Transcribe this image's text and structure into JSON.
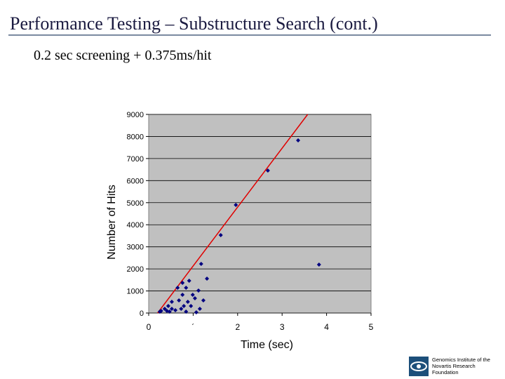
{
  "header": {
    "title": "Performance Testing – Substructure Search (cont.)",
    "subtitle": "0.2 sec screening + 0.375ms/hit"
  },
  "chart_data": {
    "type": "scatter",
    "x_label": "Time (sec)",
    "y_label": "Number of Hits",
    "xlim": [
      0,
      5
    ],
    "ylim": [
      0,
      9000
    ],
    "xticks": [
      0,
      {
        "value": 1,
        "label": "´"
      },
      2,
      3,
      4,
      5
    ],
    "yticks": [
      0,
      1000,
      2000,
      3000,
      4000,
      5000,
      6000,
      7000,
      8000,
      9000
    ],
    "grid": true,
    "plot_background": "#c0c0c0",
    "series": [
      {
        "color": "#000080",
        "x": [
          3.36,
          2.68,
          1.96,
          1.62,
          3.83,
          1.18,
          1.31,
          0.91,
          0.76,
          0.65,
          0.84,
          1.12,
          0.99,
          1.23,
          1.04,
          0.88,
          0.68,
          0.52,
          0.44,
          0.36,
          0.28,
          0.25,
          0.52,
          0.79,
          0.95,
          1.15,
          0.6,
          0.84,
          1.07,
          0.41,
          0.47,
          0.76,
          0.73
        ],
        "y": [
          7825,
          6457,
          4898,
          3531,
          2195,
          2226,
          1558,
          1463,
          1368,
          1145,
          1145,
          1018,
          827,
          573,
          668,
          509,
          573,
          509,
          318,
          191,
          95,
          64,
          191,
          318,
          318,
          191,
          127,
          64,
          32,
          95,
          64,
          827,
          191
        ]
      }
    ],
    "fit_line": {
      "color": "#e00000",
      "x": [
        0.2,
        3.575
      ],
      "y": [
        0,
        9000
      ]
    }
  },
  "footer": {
    "logo_text": [
      "Genomics Institute of the",
      "Novartis Research",
      "Foundation"
    ]
  }
}
